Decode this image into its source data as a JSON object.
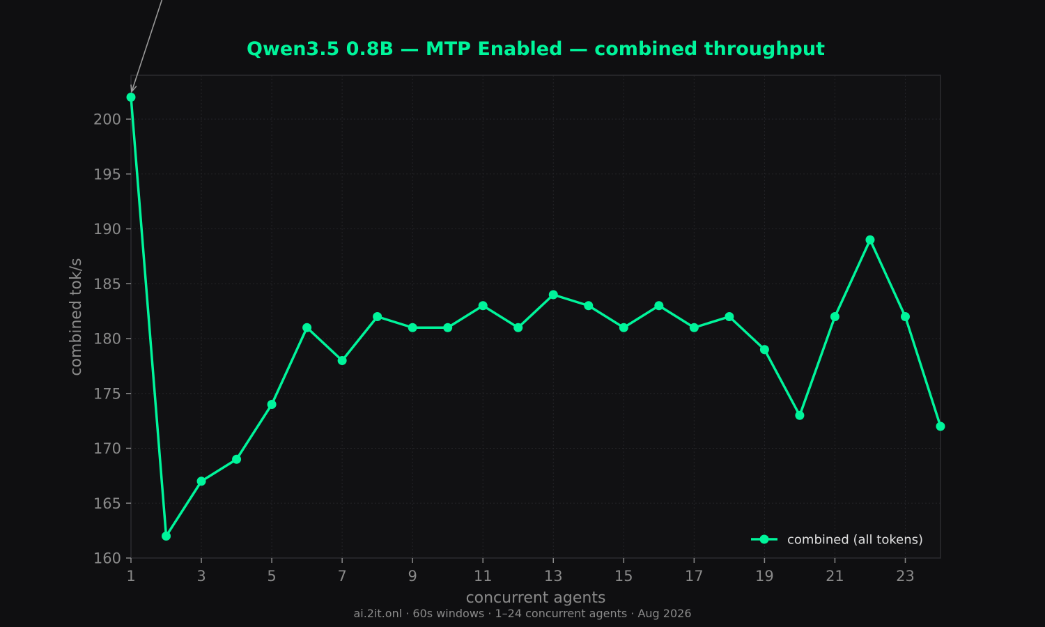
{
  "chart_data": {
    "type": "line",
    "title": "Qwen3.5 0.8B — MTP Enabled — combined throughput",
    "xlabel": "concurrent agents",
    "ylabel": "combined tok/s",
    "footer": "ai.2it.onl · 60s windows · 1–24 concurrent agents · Aug 2026",
    "xlim": [
      1,
      24
    ],
    "ylim": [
      160,
      204
    ],
    "x_ticks": [
      1,
      3,
      5,
      7,
      9,
      11,
      13,
      15,
      17,
      19,
      21,
      23
    ],
    "y_ticks": [
      160,
      165,
      170,
      175,
      180,
      185,
      190,
      195,
      200
    ],
    "grid": true,
    "legend_position": "lower-right",
    "series": [
      {
        "name": "combined (all tokens)",
        "color": "#00f59b",
        "x": [
          1,
          2,
          3,
          4,
          5,
          6,
          7,
          8,
          9,
          10,
          11,
          12,
          13,
          14,
          15,
          16,
          17,
          18,
          19,
          20,
          21,
          22,
          23,
          24
        ],
        "values": [
          202,
          162,
          167,
          169,
          174,
          181,
          178,
          182,
          181,
          181,
          183,
          181,
          184,
          183,
          181,
          183,
          181,
          182,
          179,
          173,
          182,
          189,
          182,
          172
        ]
      }
    ],
    "annotation": {
      "target_x": 1,
      "target_y": 202
    },
    "colors": {
      "background": "#0f0f11",
      "plot_background": "#111113",
      "accent": "#00f59b",
      "muted_text": "#8a8a8a",
      "legend_text": "#e0e0e0",
      "frame": "#2c2c30",
      "grid": "#242428",
      "annotation_arrow": "#9a9a9a"
    }
  }
}
